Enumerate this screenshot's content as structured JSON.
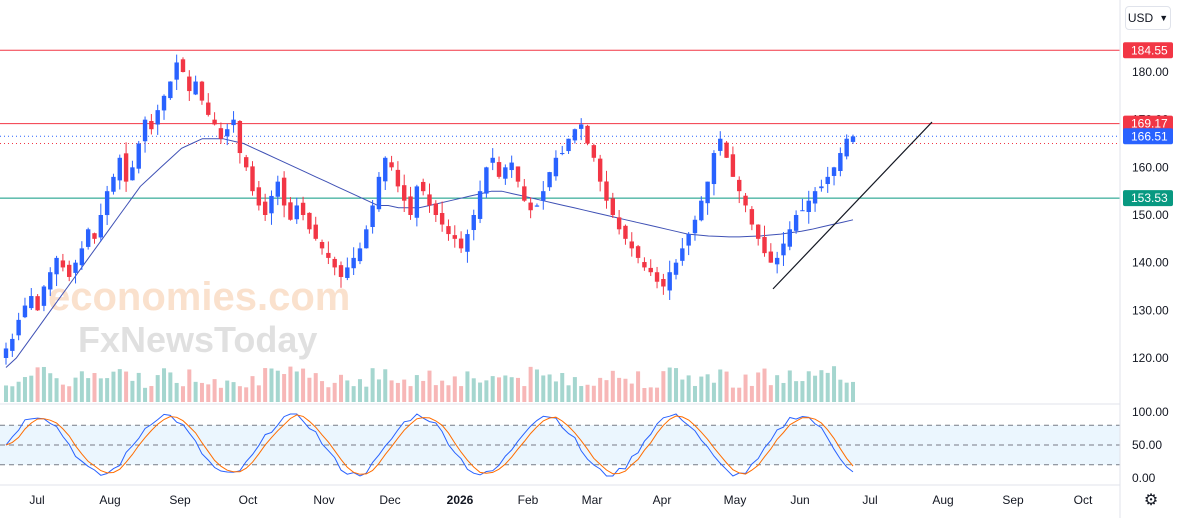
{
  "currency": {
    "label": "USD",
    "chevron_icon": "chevron-down-icon"
  },
  "settings_icon": "gear-icon",
  "watermark": {
    "line1": "economies.com",
    "line2": "FxNewsToday"
  },
  "price_tags": [
    {
      "value": 184.55,
      "label": "184.55",
      "color": "#f23645"
    },
    {
      "value": 169.17,
      "label": "169.17",
      "color": "#f23645"
    },
    {
      "value": 166.51,
      "label": "166.51",
      "color": "#2962ff"
    },
    {
      "value": 153.53,
      "label": "153.53",
      "color": "#089981"
    }
  ],
  "y_ticks": [
    "180.00",
    "170.00",
    "160.00",
    "150.00",
    "140.00",
    "130.00",
    "120.00"
  ],
  "y_tick_values": [
    180,
    170,
    160,
    150,
    140,
    130,
    120
  ],
  "stoch_ticks": [
    "100.00",
    "50.00",
    "0.00"
  ],
  "stoch_tick_values": [
    100,
    50,
    0
  ],
  "x_ticks": [
    "Jul",
    "Aug",
    "Sep",
    "Oct",
    "Nov",
    "Dec",
    "2026",
    "Feb",
    "Mar",
    "Apr",
    "May",
    "Jun",
    "Jul",
    "Aug",
    "Sep",
    "Oct"
  ],
  "chart_data": {
    "type": "candlestick",
    "ylim": [
      115,
      188
    ],
    "horizontal_lines": [
      {
        "value": 184.55,
        "color": "#f23645",
        "style": "solid"
      },
      {
        "value": 169.17,
        "color": "#f23645",
        "style": "solid"
      },
      {
        "value": 166.51,
        "color": "#2962ff",
        "style": "dotted"
      },
      {
        "value": 165.0,
        "color": "#f23645",
        "style": "dotted"
      },
      {
        "value": 153.53,
        "color": "#089981",
        "style": "solid"
      }
    ],
    "trendline": {
      "from": {
        "date": "May 20",
        "price": 134.5
      },
      "to": {
        "date": "Jul 31",
        "price": 169.5
      }
    },
    "closes": [
      122,
      124,
      128,
      131,
      133,
      130,
      135,
      138,
      141,
      139,
      137,
      140,
      143,
      147,
      145,
      150,
      155,
      158,
      162,
      157,
      160,
      165,
      170,
      168,
      172,
      175,
      178,
      182,
      180,
      176,
      178,
      174,
      171,
      169,
      166,
      168,
      170,
      163,
      160,
      155,
      152,
      150,
      154,
      157,
      152,
      149,
      152,
      150,
      147,
      145,
      143,
      141,
      139,
      137,
      139,
      141,
      143,
      147,
      152,
      158,
      162,
      160,
      156,
      153,
      150,
      156,
      155,
      152,
      150,
      148,
      146,
      145,
      143,
      146,
      150,
      155,
      160,
      162,
      158,
      160,
      161,
      157,
      153,
      151,
      152,
      155,
      159,
      162,
      163,
      166,
      168,
      169,
      165,
      162,
      157,
      153,
      150,
      147,
      145,
      143,
      141,
      139,
      138,
      136,
      135,
      138,
      140,
      143,
      146,
      149,
      153,
      157,
      163,
      166,
      162,
      158,
      155,
      152,
      148,
      145,
      142,
      140,
      141,
      144,
      147,
      150,
      151,
      153,
      155,
      156,
      158,
      160,
      163,
      166,
      166.5
    ],
    "ma_closes": [
      118,
      120,
      123,
      126,
      129,
      132,
      135,
      138,
      141,
      144,
      147,
      150,
      153,
      156,
      158,
      160,
      162,
      164,
      165,
      166,
      166,
      166,
      165.5,
      165,
      164,
      163,
      162,
      161,
      160,
      159,
      158,
      157,
      156,
      155,
      154,
      153,
      152,
      152,
      151.5,
      151.5,
      151.5,
      152,
      152.5,
      153,
      153.5,
      154,
      154.5,
      155,
      155,
      154.5,
      154,
      153.5,
      153,
      152.5,
      152,
      151.5,
      151,
      150.5,
      150,
      149.5,
      149,
      148.5,
      148,
      147.5,
      147,
      146.5,
      146,
      145.8,
      145.6,
      145.5,
      145.4,
      145.4,
      145.5,
      145.6,
      145.8,
      146,
      146.3,
      146.6,
      147,
      147.5,
      148,
      148.5,
      149
    ],
    "stochastic": {
      "ylim": [
        0,
        100
      ],
      "levels": [
        80,
        50,
        20
      ]
    }
  }
}
